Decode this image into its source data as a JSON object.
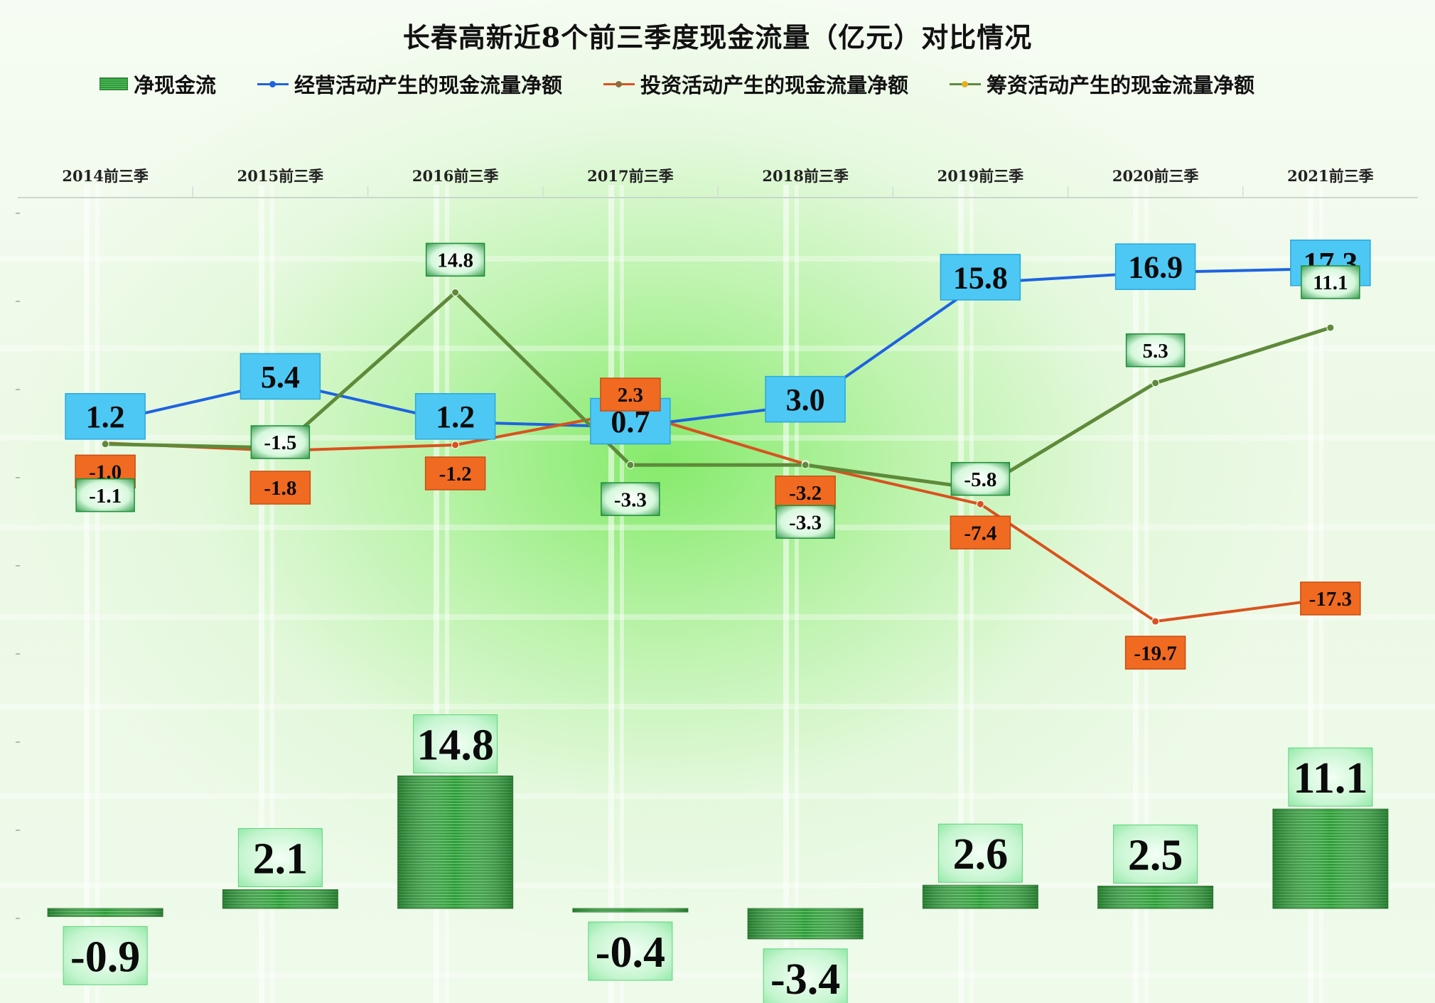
{
  "chart_data": {
    "type": "bar",
    "title": "长春高新近8个前三季度现金流量（亿元）对比情况",
    "xlabel": "",
    "ylabel": "",
    "categories": [
      "2014前三季",
      "2015前三季",
      "2016前三季",
      "2017前三季",
      "2018前三季",
      "2019前三季",
      "2020前三季",
      "2021前三季"
    ],
    "legend_position": "top",
    "x_axis_position": "top",
    "grid": false,
    "series": [
      {
        "name": "净现金流",
        "type": "bar",
        "color": "#2f9a3a",
        "label_color": "#bff3c8",
        "values": [
          -0.9,
          2.1,
          14.8,
          -0.4,
          -3.4,
          2.6,
          2.5,
          11.1
        ]
      },
      {
        "name": "经营活动产生的现金流量净额",
        "type": "line",
        "color": "#1e63e0",
        "label_color": "#4dc8f4",
        "values": [
          1.2,
          5.4,
          1.2,
          0.7,
          3.0,
          15.8,
          16.9,
          17.3
        ]
      },
      {
        "name": "投资活动产生的现金流量净额",
        "type": "line",
        "color": "#d9521e",
        "label_color": "#f06a22",
        "values": [
          -1.0,
          -1.8,
          -1.2,
          2.3,
          -3.2,
          -7.4,
          -19.7,
          -17.3
        ]
      },
      {
        "name": "筹资活动产生的现金流量净额",
        "type": "line",
        "color": "#5e8a3a",
        "label_color": "#1f8f3a",
        "values": [
          -1.1,
          -1.5,
          14.8,
          -3.3,
          -3.3,
          -5.8,
          5.3,
          11.1
        ]
      }
    ]
  }
}
